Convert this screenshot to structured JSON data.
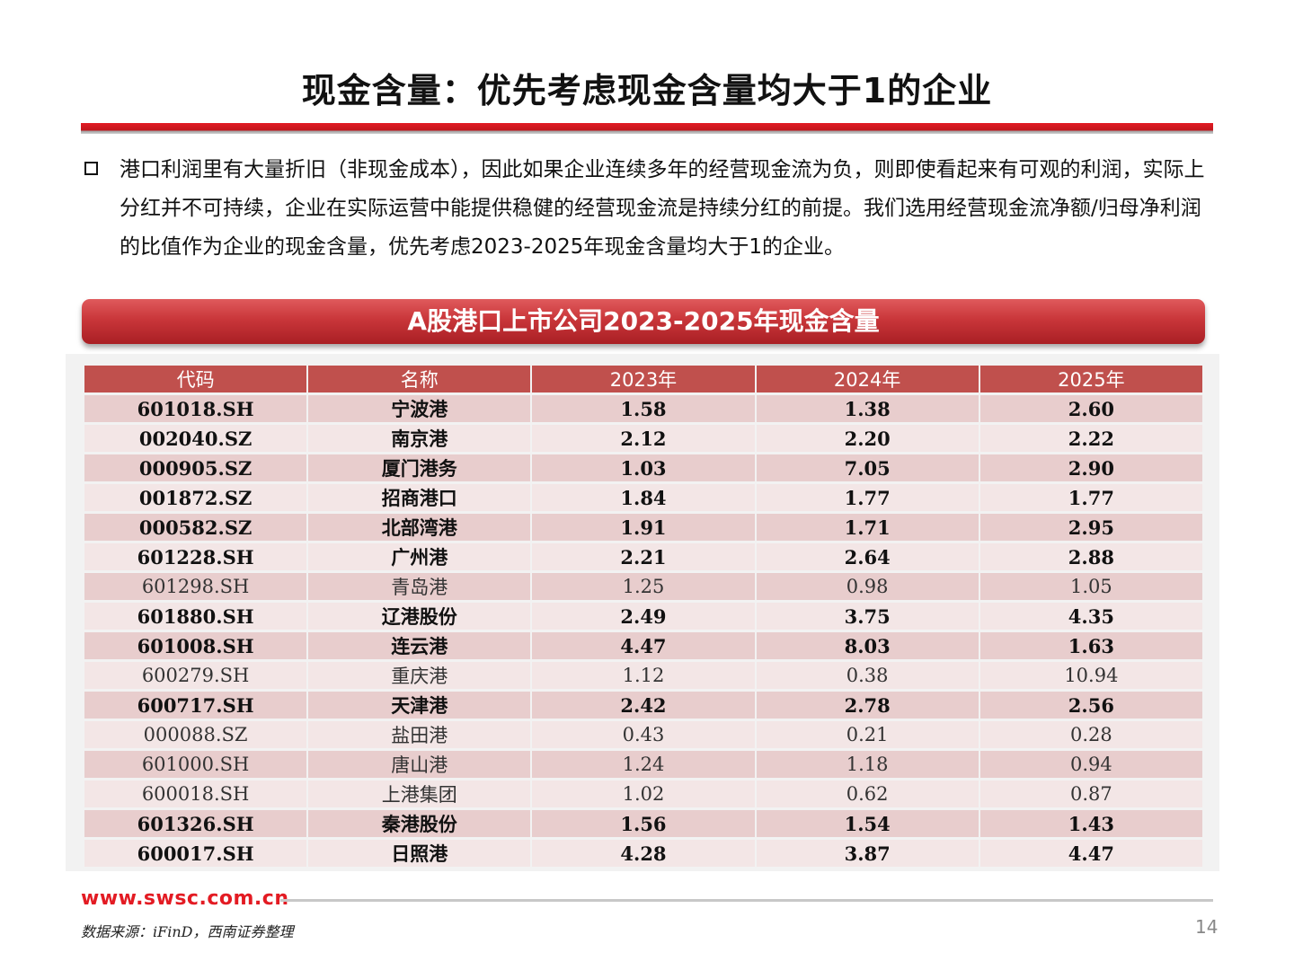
{
  "title": "现金含量：优先考虑现金含量均大于1的企业",
  "paragraph": "港口利润里有大量折旧（非现金成本），因此如果企业连续多年的经营现金流为负，则即使看起来有可观的利润，实际上分红并不可持续，企业在实际运营中能提供稳健的经营现金流是持续分红的前提。我们选用经营现金流净额/归母净利润的比值作为企业的现金含量，优先考虑2023-2025年现金含量均大于1的企业。",
  "banner": "A股港口上市公司2023-2025年现金含量",
  "table": {
    "headers": [
      "代码",
      "名称",
      "2023年",
      "2024年",
      "2025年"
    ],
    "rows": [
      {
        "code": "601018.SH",
        "name": "宁波港",
        "y2023": "1.58",
        "y2024": "1.38",
        "y2025": "2.60",
        "highlight": true
      },
      {
        "code": "002040.SZ",
        "name": "南京港",
        "y2023": "2.12",
        "y2024": "2.20",
        "y2025": "2.22",
        "highlight": true
      },
      {
        "code": "000905.SZ",
        "name": "厦门港务",
        "y2023": "1.03",
        "y2024": "7.05",
        "y2025": "2.90",
        "highlight": true
      },
      {
        "code": "001872.SZ",
        "name": "招商港口",
        "y2023": "1.84",
        "y2024": "1.77",
        "y2025": "1.77",
        "highlight": true
      },
      {
        "code": "000582.SZ",
        "name": "北部湾港",
        "y2023": "1.91",
        "y2024": "1.71",
        "y2025": "2.95",
        "highlight": true
      },
      {
        "code": "601228.SH",
        "name": "广州港",
        "y2023": "2.21",
        "y2024": "2.64",
        "y2025": "2.88",
        "highlight": true
      },
      {
        "code": "601298.SH",
        "name": "青岛港",
        "y2023": "1.25",
        "y2024": "0.98",
        "y2025": "1.05",
        "highlight": false
      },
      {
        "code": "601880.SH",
        "name": "辽港股份",
        "y2023": "2.49",
        "y2024": "3.75",
        "y2025": "4.35",
        "highlight": true
      },
      {
        "code": "601008.SH",
        "name": "连云港",
        "y2023": "4.47",
        "y2024": "8.03",
        "y2025": "1.63",
        "highlight": true
      },
      {
        "code": "600279.SH",
        "name": "重庆港",
        "y2023": "1.12",
        "y2024": "0.38",
        "y2025": "10.94",
        "highlight": false
      },
      {
        "code": "600717.SH",
        "name": "天津港",
        "y2023": "2.42",
        "y2024": "2.78",
        "y2025": "2.56",
        "highlight": true
      },
      {
        "code": "000088.SZ",
        "name": "盐田港",
        "y2023": "0.43",
        "y2024": "0.21",
        "y2025": "0.28",
        "highlight": false
      },
      {
        "code": "601000.SH",
        "name": "唐山港",
        "y2023": "1.24",
        "y2024": "1.18",
        "y2025": "0.94",
        "highlight": false
      },
      {
        "code": "600018.SH",
        "name": "上港集团",
        "y2023": "1.02",
        "y2024": "0.62",
        "y2025": "0.87",
        "highlight": false
      },
      {
        "code": "601326.SH",
        "name": "秦港股份",
        "y2023": "1.56",
        "y2024": "1.54",
        "y2025": "1.43",
        "highlight": true
      },
      {
        "code": "600017.SH",
        "name": "日照港",
        "y2023": "4.28",
        "y2024": "3.87",
        "y2025": "4.47",
        "highlight": true
      }
    ]
  },
  "footer": {
    "url": "www.swsc.com.cn",
    "source": "数据来源：iFinD，西南证券整理",
    "page": "14"
  },
  "colors": {
    "accent_red": "#e31b23",
    "header_fill": "#c0504d",
    "row_odd": "#e8cdcd",
    "row_even": "#f3e6e6"
  }
}
